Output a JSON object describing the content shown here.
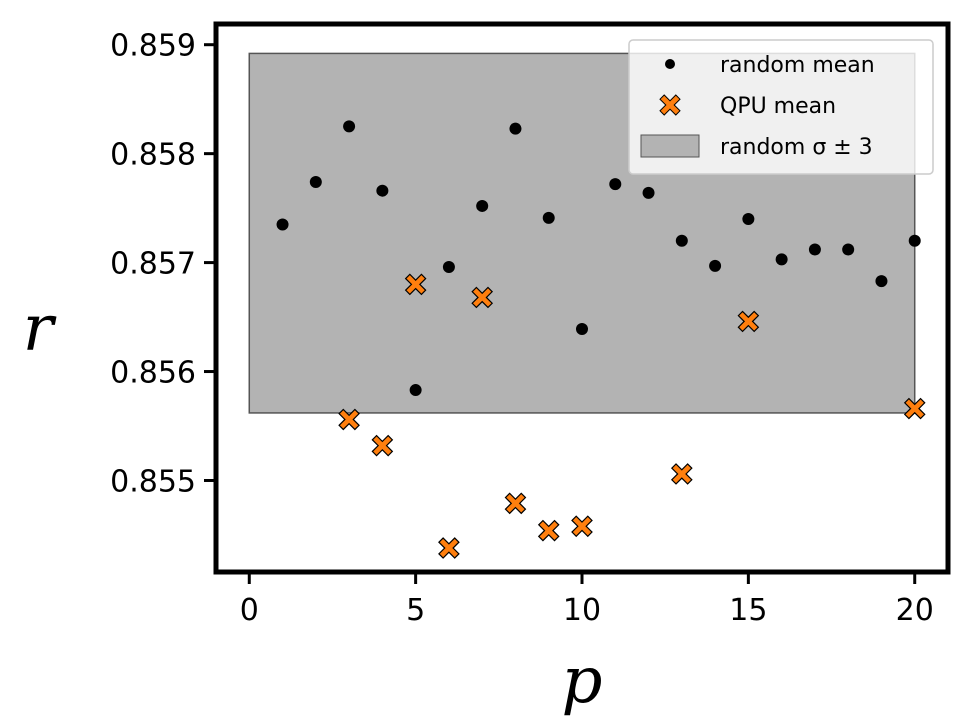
{
  "chart_data": {
    "type": "scatter",
    "xlabel": "p",
    "ylabel": "r",
    "xlim": [
      -1,
      21
    ],
    "ylim": [
      0.85416,
      0.85919
    ],
    "xticks": [
      0,
      5,
      10,
      15,
      20
    ],
    "xtick_labels": [
      "0",
      "5",
      "10",
      "15",
      "20"
    ],
    "yticks": [
      0.855,
      0.856,
      0.857,
      0.858,
      0.859
    ],
    "ytick_labels": [
      "0.855",
      "0.856",
      "0.857",
      "0.858",
      "0.859"
    ],
    "grid": false,
    "legend_position": "top-right",
    "band": {
      "name": "random σ ± 3",
      "x": [
        0,
        20
      ],
      "y": [
        0.85562,
        0.85892
      ],
      "color": "#b3b3b3"
    },
    "series": [
      {
        "name": "random mean",
        "marker": "dot",
        "color": "#000000",
        "x": [
          1,
          2,
          3,
          4,
          5,
          6,
          7,
          8,
          9,
          10,
          11,
          12,
          13,
          14,
          15,
          16,
          17,
          18,
          19,
          20
        ],
        "y": [
          0.85735,
          0.85774,
          0.85825,
          0.85766,
          0.85583,
          0.85696,
          0.85752,
          0.85823,
          0.85741,
          0.85639,
          0.85772,
          0.85764,
          0.8572,
          0.85697,
          0.8574,
          0.85703,
          0.85712,
          0.85712,
          0.85683,
          0.8572
        ]
      },
      {
        "name": "QPU mean",
        "marker": "x",
        "color": "#ff7f0e",
        "x": [
          3,
          4,
          5,
          6,
          7,
          8,
          9,
          10,
          13,
          15,
          20
        ],
        "y": [
          0.85556,
          0.85532,
          0.8568,
          0.85438,
          0.85668,
          0.85479,
          0.85454,
          0.85458,
          0.85506,
          0.85646,
          0.85566
        ]
      }
    ]
  }
}
